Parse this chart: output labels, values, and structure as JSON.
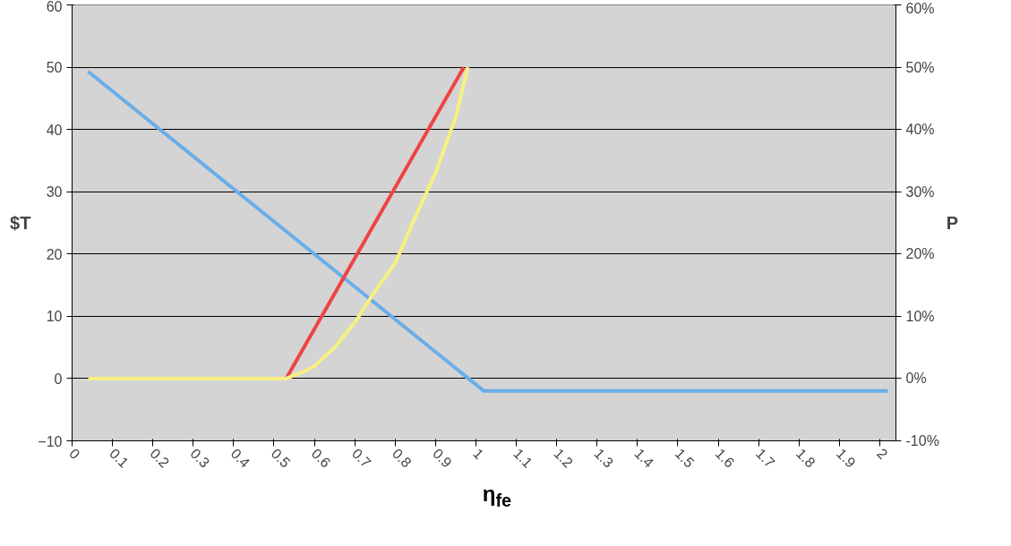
{
  "chart_data": {
    "type": "line",
    "xlabel": "η$_{fe}$",
    "ylabel": "$T",
    "y2label": "P",
    "xlim": [
      0,
      2.04
    ],
    "xticks": [
      0,
      0.1,
      0.2,
      0.3,
      0.4,
      0.5,
      0.6,
      0.7,
      0.8,
      0.9,
      1,
      1.1,
      1.2,
      1.3,
      1.4,
      1.5,
      1.6,
      1.7,
      1.8,
      1.9,
      2
    ],
    "ylim": [
      -10,
      60
    ],
    "yticks": [
      -10,
      0,
      10,
      20,
      30,
      40,
      50,
      60
    ],
    "y2lim": [
      -0.1,
      0.6
    ],
    "y2ticks": [
      {
        "value": -0.1,
        "label": "-10%"
      },
      {
        "value": 0,
        "label": "0%"
      },
      {
        "value": 0.1,
        "label": "10%"
      },
      {
        "value": 0.2,
        "label": "20%"
      },
      {
        "value": 0.3,
        "label": "30%"
      },
      {
        "value": 0.4,
        "label": "40%"
      },
      {
        "value": 0.5,
        "label": "50%"
      },
      {
        "value": 0.6,
        "label": "60%"
      }
    ],
    "grid": "y",
    "marker": "none",
    "line_style": "solid",
    "series": [
      {
        "color": "#6aaee8",
        "x": [
          0.04,
          1.02,
          2.02
        ],
        "values": [
          49.3,
          -2,
          -2
        ]
      },
      {
        "color": "#ee4444",
        "axis": "y2",
        "x": [
          0.53,
          0.97
        ],
        "values": [
          0,
          0.5
        ]
      },
      {
        "color": "#f8f080",
        "axis": "y2",
        "x": [
          0.04,
          0.53,
          0.57,
          0.6,
          0.65,
          0.7,
          0.75,
          0.8,
          0.85,
          0.9,
          0.95,
          0.98
        ],
        "values": [
          0,
          0,
          0.01,
          0.02,
          0.05,
          0.09,
          0.14,
          0.185,
          0.26,
          0.33,
          0.42,
          0.5
        ]
      }
    ]
  }
}
